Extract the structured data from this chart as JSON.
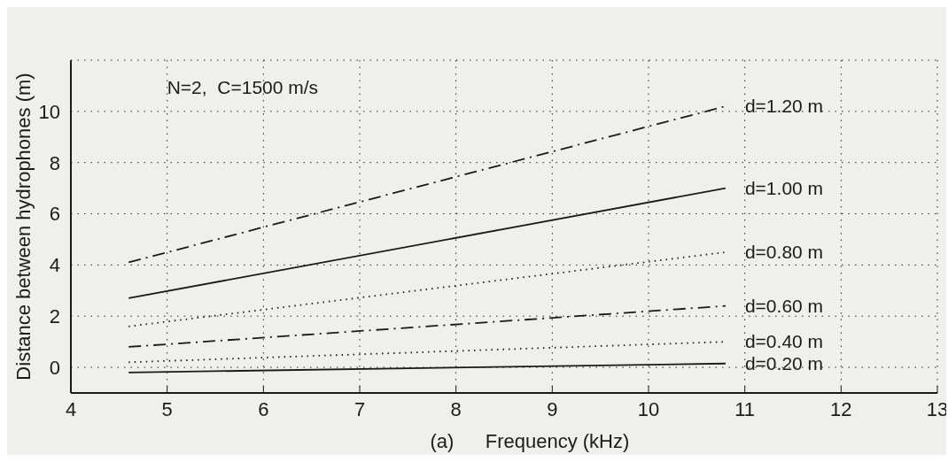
{
  "chart_data": {
    "type": "line",
    "xlabel": "Frequency (kHz)",
    "ylabel": "Distance between hydrophones (m)",
    "annotations": [
      "N=2,  C=1500 m/s",
      "(a)"
    ],
    "x": [
      4.6,
      10.8
    ],
    "series": [
      {
        "name": "d=1.20 m",
        "color": "#1a1a1a",
        "line_style": "dashdot",
        "values": [
          4.1,
          10.2
        ]
      },
      {
        "name": "d=1.00 m",
        "color": "#1a1a1a",
        "line_style": "solid",
        "values": [
          2.7,
          7.0
        ]
      },
      {
        "name": "d=0.80 m",
        "color": "#1a1a1a",
        "line_style": "dotted",
        "values": [
          1.6,
          4.5
        ]
      },
      {
        "name": "d=0.60 m",
        "color": "#1a1a1a",
        "line_style": "dashdot",
        "values": [
          0.8,
          2.4
        ]
      },
      {
        "name": "d=0.40 m",
        "color": "#1a1a1a",
        "line_style": "dotted",
        "values": [
          0.2,
          1.0
        ]
      },
      {
        "name": "d=0.20 m",
        "color": "#1a1a1a",
        "line_style": "solid",
        "values": [
          -0.2,
          0.15
        ]
      }
    ],
    "xlim": [
      4,
      13
    ],
    "xticks": [
      4,
      5,
      6,
      7,
      8,
      9,
      10,
      11,
      12,
      13
    ],
    "ylim": [
      -1,
      12
    ],
    "yticks": [
      0,
      2,
      4,
      6,
      8,
      10
    ],
    "grid": true,
    "legend": false,
    "marker": "none"
  }
}
